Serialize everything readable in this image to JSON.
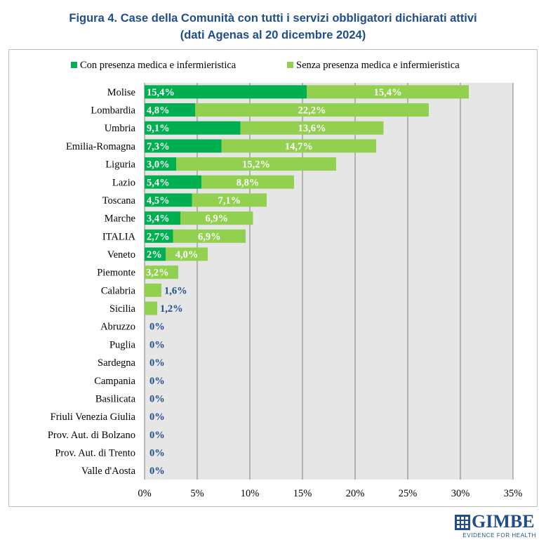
{
  "title_line1": "Figura 4. Case della Comunità con tutti i servizi obbligatori dichiarati attivi",
  "title_line2": "(dati Agenas al 20 dicembre 2024)",
  "logo": {
    "name": "GIMBE",
    "tagline": "EVIDENCE FOR HEALTH"
  },
  "colors": {
    "dark_green": "#00b050",
    "light_green": "#92d050",
    "label_blue": "#1f4e8c",
    "plot_bg": "#e6e6e6"
  },
  "chart_data": {
    "type": "bar",
    "orientation": "horizontal",
    "stacked": true,
    "categories": [
      "Molise",
      "Lombardia",
      "Umbria",
      "Emilia-Romagna",
      "Liguria",
      "Lazio",
      "Toscana",
      "Marche",
      "ITALIA",
      "Veneto",
      "Piemonte",
      "Calabria",
      "Sicilia",
      "Abruzzo",
      "Puglia",
      "Sardegna",
      "Campania",
      "Basilicata",
      "Friuli Venezia Giulia",
      "Prov. Aut. di Bolzano",
      "Prov. Aut. di Trento",
      "Valle d'Aosta"
    ],
    "series": [
      {
        "name": "Con presenza medica e infermieristica",
        "values": [
          15.4,
          4.8,
          9.1,
          7.3,
          3.0,
          5.4,
          4.5,
          3.4,
          2.7,
          2,
          0,
          0,
          0,
          0,
          0,
          0,
          0,
          0,
          0,
          0,
          0,
          0
        ],
        "labels": [
          "15,4%",
          "4,8%",
          "9,1%",
          "7,3%",
          "3,0%",
          "5,4%",
          "4,5%",
          "3,4%",
          "2,7%",
          "2%",
          "",
          "",
          "",
          "",
          "",
          "",
          "",
          "",
          "",
          "",
          "",
          ""
        ]
      },
      {
        "name": "Senza presenza medica e infermieristica",
        "values": [
          15.4,
          22.2,
          13.6,
          14.7,
          15.2,
          8.8,
          7.1,
          6.9,
          6.9,
          4.0,
          3.2,
          1.6,
          1.2,
          0,
          0,
          0,
          0,
          0,
          0,
          0,
          0,
          0
        ],
        "labels": [
          "15,4%",
          "22,2%",
          "13,6%",
          "14,7%",
          "15,2%",
          "8,8%",
          "7,1%",
          "6,9%",
          "6,9%",
          "4,0%",
          "3,2%",
          "1,6%",
          "1,2%",
          "0%",
          "0%",
          "0%",
          "0%",
          "0%",
          "0%",
          "0%",
          "0%",
          "0%"
        ]
      }
    ],
    "xlim": [
      0,
      35
    ],
    "x_ticks": [
      0,
      5,
      10,
      15,
      20,
      25,
      30,
      35
    ],
    "x_tick_labels": [
      "0%",
      "5%",
      "10%",
      "15%",
      "20%",
      "25%",
      "30%",
      "35%"
    ],
    "grid": "vertical",
    "legend_position": "top"
  }
}
